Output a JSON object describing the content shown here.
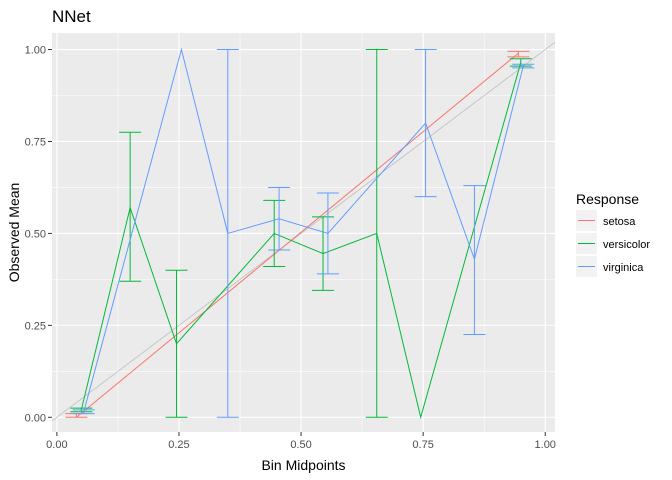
{
  "chart_data": {
    "type": "line",
    "title": "NNet",
    "xlabel": "Bin Midpoints",
    "ylabel": "Observed Mean",
    "xlim": [
      -0.01,
      1.02
    ],
    "ylim": [
      -0.04,
      1.045
    ],
    "x_ticks": [
      0.0,
      0.25,
      0.5,
      0.75,
      1.0
    ],
    "x_tick_labels": [
      "0.00",
      "0.25",
      "0.50",
      "0.75",
      "1.00"
    ],
    "y_ticks": [
      0.0,
      0.25,
      0.5,
      0.75,
      1.0
    ],
    "y_tick_labels": [
      "0.00",
      "0.25",
      "0.50",
      "0.75",
      "1.00"
    ],
    "grid": true,
    "reference_line": {
      "from": [
        -0.01,
        -0.01
      ],
      "to": [
        1.02,
        1.02
      ],
      "color": "#bebebe"
    },
    "legend": {
      "title": "Response",
      "position": "right"
    },
    "series": [
      {
        "name": "setosa",
        "color": "#F8766D",
        "points": [
          {
            "x": 0.04,
            "y": 0.0,
            "lo": 0.0,
            "hi": 0.01
          },
          {
            "x": 0.945,
            "y": 0.99,
            "lo": 0.98,
            "hi": 0.995
          }
        ]
      },
      {
        "name": "versicolor",
        "color": "#00BA38",
        "points": [
          {
            "x": 0.05,
            "y": 0.02,
            "lo": 0.015,
            "hi": 0.025
          },
          {
            "x": 0.15,
            "y": 0.57,
            "lo": 0.37,
            "hi": 0.775
          },
          {
            "x": 0.245,
            "y": 0.2,
            "lo": 0.0,
            "hi": 0.4
          },
          {
            "x": 0.445,
            "y": 0.5,
            "lo": 0.41,
            "hi": 0.59
          },
          {
            "x": 0.545,
            "y": 0.445,
            "lo": 0.345,
            "hi": 0.545
          },
          {
            "x": 0.655,
            "y": 0.5,
            "lo": 0.0,
            "hi": 1.0
          },
          {
            "x": 0.745,
            "y": 0.0
          },
          {
            "x": 0.95,
            "y": 0.965,
            "lo": 0.955,
            "hi": 0.975
          }
        ]
      },
      {
        "name": "virginica",
        "color": "#619CFF",
        "points": [
          {
            "x": 0.055,
            "y": 0.015,
            "lo": 0.01,
            "hi": 0.02
          },
          {
            "x": 0.255,
            "y": 1.0
          },
          {
            "x": 0.35,
            "y": 0.5,
            "lo": 0.0,
            "hi": 1.0
          },
          {
            "x": 0.455,
            "y": 0.54,
            "lo": 0.455,
            "hi": 0.625
          },
          {
            "x": 0.555,
            "y": 0.5,
            "lo": 0.39,
            "hi": 0.61
          },
          {
            "x": 0.755,
            "y": 0.8,
            "lo": 0.6,
            "hi": 1.0
          },
          {
            "x": 0.855,
            "y": 0.43,
            "lo": 0.225,
            "hi": 0.63
          },
          {
            "x": 0.955,
            "y": 0.955,
            "lo": 0.95,
            "hi": 0.96
          }
        ]
      }
    ]
  }
}
